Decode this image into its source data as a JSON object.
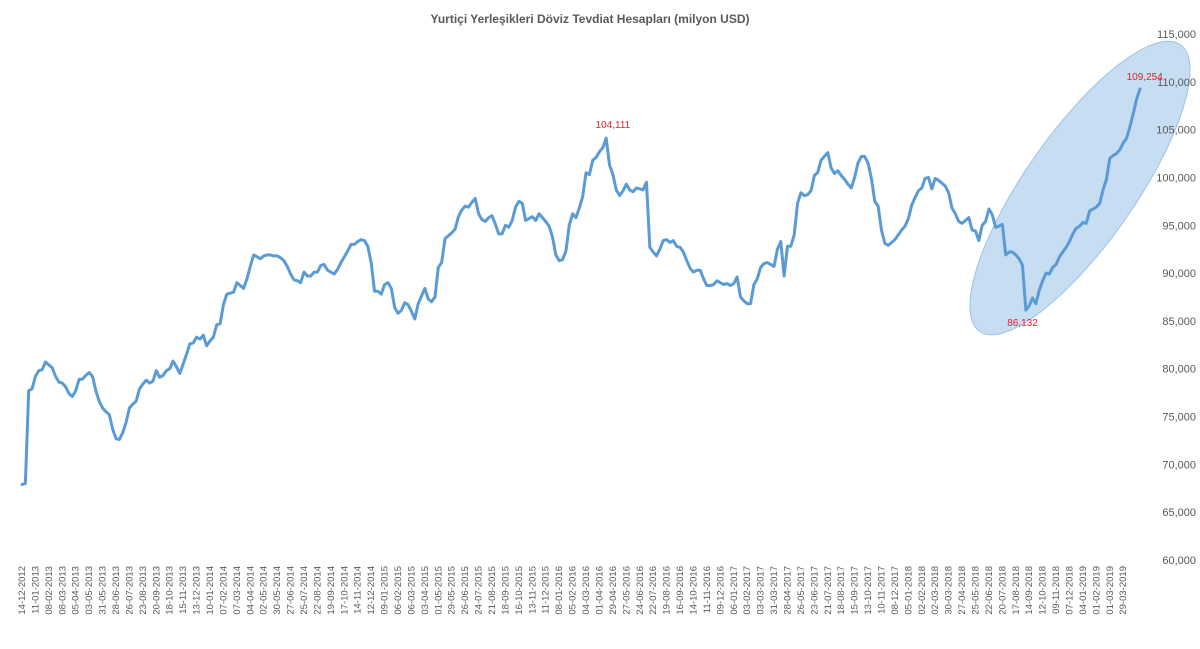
{
  "chart_data": {
    "type": "line",
    "title": "Yurtiçi Yerleşikleri Döviz Tevdiat Hesapları (milyon USD)",
    "xlabel": "",
    "ylabel": "",
    "ylim": [
      60000,
      115000
    ],
    "y_ticks": [
      "60,000",
      "65,000",
      "70,000",
      "75,000",
      "80,000",
      "85,000",
      "90,000",
      "95,000",
      "100,000",
      "105,000",
      "110,000",
      "115,000"
    ],
    "x_tick_labels": [
      "14-12-2012",
      "11-01-2013",
      "08-02-2013",
      "08-03-2013",
      "05-04-2013",
      "03-05-2013",
      "31-05-2013",
      "28-06-2013",
      "26-07-2013",
      "23-08-2013",
      "20-09-2013",
      "18-10-2013",
      "15-11-2013",
      "13-12-2013",
      "10-01-2014",
      "07-02-2014",
      "07-03-2014",
      "04-04-2014",
      "02-05-2014",
      "30-05-2014",
      "27-06-2014",
      "25-07-2014",
      "22-08-2014",
      "19-09-2014",
      "17-10-2014",
      "14-11-2014",
      "12-12-2014",
      "09-01-2015",
      "06-02-2015",
      "06-03-2015",
      "03-04-2015",
      "01-05-2015",
      "29-05-2015",
      "26-06-2015",
      "24-07-2015",
      "21-08-2015",
      "18-09-2015",
      "16-10-2015",
      "13-11-2015",
      "11-12-2015",
      "08-01-2016",
      "05-02-2016",
      "04-03-2016",
      "01-04-2016",
      "29-04-2016",
      "27-05-2016",
      "24-06-2016",
      "22-07-2016",
      "19-08-2016",
      "16-09-2016",
      "14-10-2016",
      "11-11-2016",
      "09-12-2016",
      "06-01-2017",
      "03-02-2017",
      "03-03-2017",
      "31-03-2017",
      "28-04-2017",
      "26-05-2017",
      "23-06-2017",
      "21-07-2017",
      "18-08-2017",
      "15-09-2017",
      "13-10-2017",
      "10-11-2017",
      "08-12-2017",
      "05-01-2018",
      "02-02-2018",
      "02-03-2018",
      "30-03-2018",
      "27-04-2018",
      "25-05-2018",
      "22-06-2018",
      "20-07-2018",
      "17-08-2018",
      "14-09-2018",
      "12-10-2018",
      "09-11-2018",
      "07-12-2018",
      "04-01-2019",
      "01-02-2019",
      "01-03-2019",
      "29-03-2019"
    ],
    "series": [
      {
        "values": [
          67900,
          68000,
          77700,
          77900,
          79200,
          79800,
          79900,
          80700,
          80400,
          80100,
          79200,
          78600,
          78500,
          78100,
          77400,
          77100,
          77700,
          78900,
          78900,
          79300,
          79600,
          79200,
          77700,
          76600,
          75900,
          75500,
          75200,
          73700,
          72700,
          72600,
          73300,
          74400,
          75900,
          76300,
          76600,
          77900,
          78400,
          78800,
          78500,
          78700,
          79800,
          79100,
          79300,
          79800,
          80000,
          80800,
          80200,
          79500,
          80500,
          81500,
          82600,
          82700,
          83300,
          83100,
          83500,
          82400,
          82900,
          83300,
          84600,
          84700,
          86700,
          87800,
          87900,
          88000,
          89000,
          88700,
          88400,
          89400,
          90700,
          91900,
          91700,
          91500,
          91800,
          91900,
          91900,
          91800,
          91800,
          91600,
          91300,
          90700,
          89900,
          89300,
          89200,
          89000,
          90100,
          89700,
          89700,
          90100,
          90100,
          90800,
          90900,
          90300,
          90100,
          89900,
          90400,
          91100,
          91700,
          92300,
          93000,
          93000,
          93300,
          93500,
          93400,
          92800,
          91100,
          88100,
          88100,
          87800,
          88800,
          89000,
          88400,
          86400,
          85800,
          86100,
          86900,
          86700,
          86000,
          85200,
          86800,
          87600,
          88400,
          87300,
          87000,
          87500,
          90600,
          91100,
          93600,
          93900,
          94200,
          94600,
          95900,
          96600,
          97000,
          96900,
          97400,
          97800,
          96200,
          95600,
          95400,
          95800,
          96000,
          95100,
          94100,
          94100,
          95000,
          94800,
          95500,
          96900,
          97500,
          97300,
          95500,
          95700,
          95900,
          95500,
          96200,
          95800,
          95400,
          94900,
          93800,
          91900,
          91300,
          91400,
          92300,
          95000,
          96200,
          95800,
          96800,
          98000,
          100500,
          100300,
          101800,
          102100,
          102700,
          103100,
          104111,
          101300,
          100300,
          98700,
          98100,
          98600,
          99300,
          98700,
          98500,
          98900,
          98800,
          98700,
          99500,
          92700,
          92200,
          91800,
          92500,
          93400,
          93500,
          93200,
          93400,
          92800,
          92700,
          92200,
          91300,
          90500,
          90100,
          90300,
          90300,
          89400,
          88700,
          88700,
          88800,
          89200,
          89000,
          88800,
          88900,
          88700,
          88900,
          89600,
          87500,
          87100,
          86800,
          86800,
          88800,
          89400,
          90600,
          91000,
          91100,
          90900,
          90700,
          92500,
          93300,
          89700,
          92800,
          92800,
          94000,
          97300,
          98400,
          98100,
          98200,
          98600,
          100200,
          100500,
          101800,
          102200,
          102600,
          101000,
          100400,
          100700,
          100200,
          99800,
          99300,
          98900,
          100000,
          101500,
          102200,
          102200,
          101500,
          99900,
          97500,
          97000,
          94500,
          93100,
          92900,
          93200,
          93500,
          94000,
          94500,
          94900,
          95700,
          97100,
          97900,
          98600,
          98900,
          99900,
          100000,
          98800,
          99900,
          99700,
          99400,
          99100,
          98400,
          96800,
          96200,
          95400,
          95200,
          95500,
          95800,
          94500,
          94400,
          93400,
          95000,
          95400,
          96700,
          96100,
          94800,
          94900,
          95100,
          91900,
          92200,
          92200,
          91900,
          91500,
          90800,
          86132,
          86600,
          87400,
          86800,
          88200,
          89200,
          90000,
          89900,
          90600,
          90900,
          91700,
          92200,
          92700,
          93300,
          94100,
          94700,
          94900,
          95300,
          95200,
          96500,
          96700,
          96900,
          97300,
          98700,
          99800,
          102000,
          102300,
          102500,
          102900,
          103600,
          104100,
          105300,
          106700,
          108200,
          109254
        ]
      }
    ],
    "annotations": [
      {
        "text": "104,111",
        "index": 176,
        "value": 104111
      },
      {
        "text": "86,132",
        "index": 298,
        "value": 86132
      },
      {
        "text": "109,254",
        "index": 335,
        "value": 109254
      }
    ],
    "line_color": "#5b9bd5",
    "highlight_ellipse_color": "#bdd7ee",
    "annotation_color": "#e0232b",
    "grid": false,
    "legend": "none"
  }
}
